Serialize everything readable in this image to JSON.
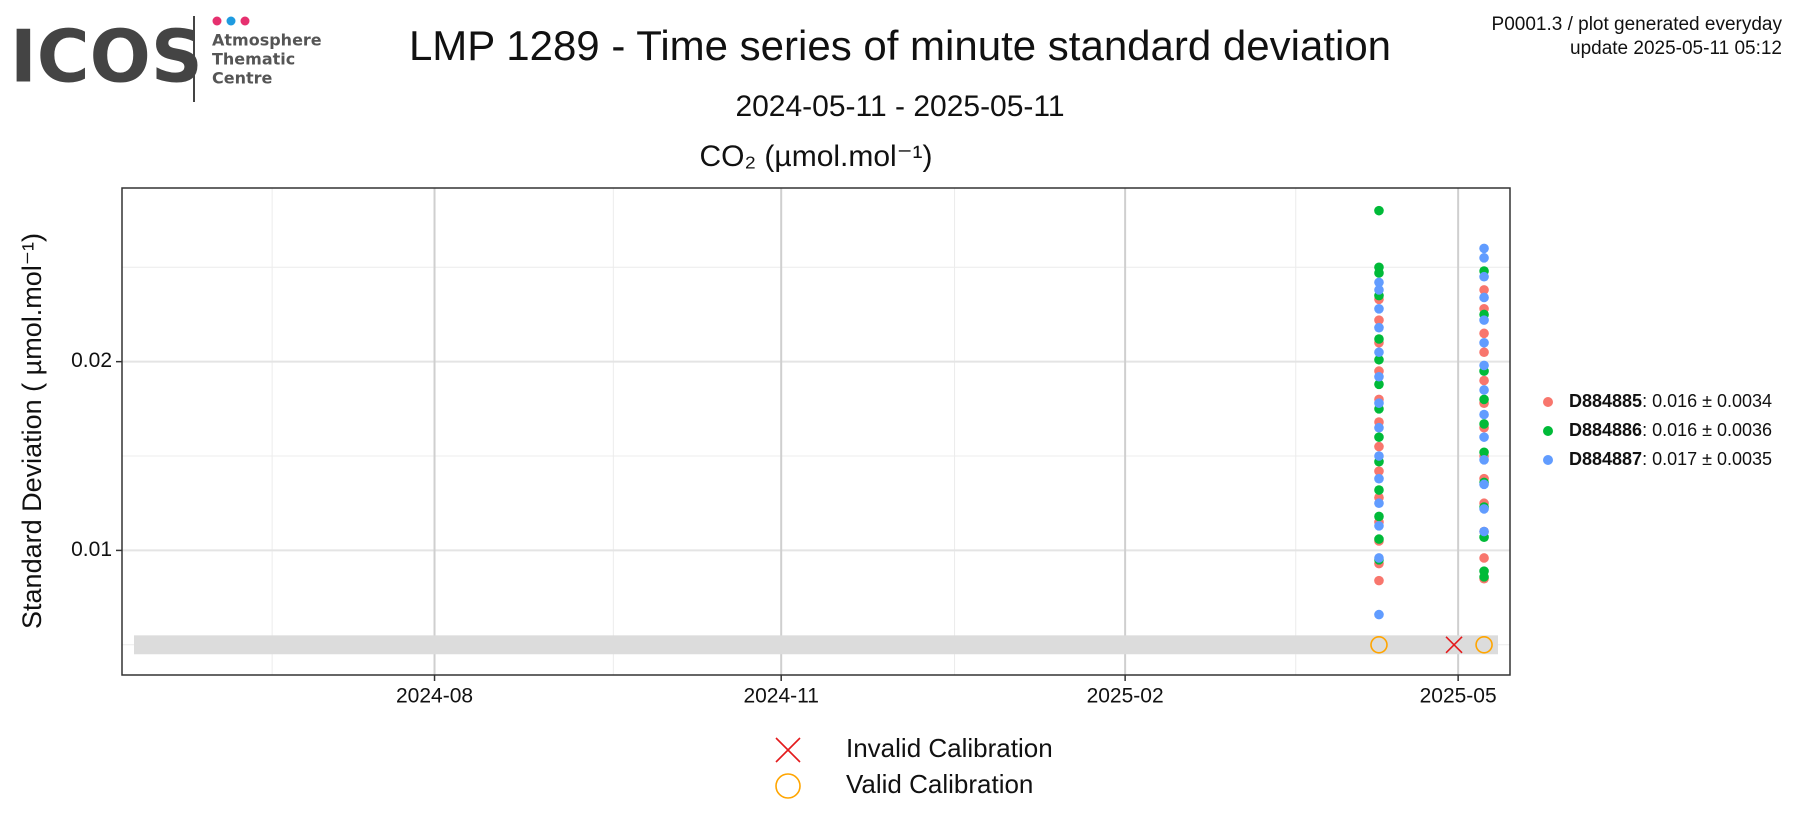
{
  "logo": {
    "name": "ICOS",
    "lines": [
      "Atmosphere",
      "Thematic",
      "Centre"
    ]
  },
  "header": {
    "info": [
      "P0001.3 / plot generated everyday",
      "update  2025-05-11 05:12"
    ]
  },
  "chart_data": {
    "type": "scatter",
    "title": "LMP 1289 - Time series of minute standard deviation",
    "subtitle": "2024-05-11 - 2025-05-11",
    "panel_title": "CO₂ (µmol.mol⁻¹)",
    "y_label": "Standard Deviation ( µmol.mol⁻¹)",
    "xlim": [
      2024.35,
      2025.367
    ],
    "xticks": [
      {
        "value": 2024.579,
        "label": "2024-08"
      },
      {
        "value": 2024.833,
        "label": "2024-11"
      },
      {
        "value": 2025.085,
        "label": "2025-02"
      },
      {
        "value": 2025.329,
        "label": "2025-05"
      }
    ],
    "xminorticks": [
      2024.46,
      2024.71,
      2024.96,
      2025.21
    ],
    "ylim": [
      0.0034,
      0.0292
    ],
    "yticks": [
      0.01,
      0.02
    ],
    "yminorticks": [
      0.005,
      0.015,
      0.025
    ],
    "grid": true,
    "legend": "right",
    "series": [
      {
        "name": "D884885",
        "summary": ": 0.016 ± 0.0034",
        "color": "#F8766D",
        "x": [
          2025.271,
          2025.271,
          2025.271,
          2025.271,
          2025.271,
          2025.271,
          2025.271,
          2025.271,
          2025.271,
          2025.271,
          2025.271,
          2025.271,
          2025.271,
          2025.348,
          2025.348,
          2025.348,
          2025.348,
          2025.348,
          2025.348,
          2025.348,
          2025.348,
          2025.348,
          2025.348,
          2025.348,
          2025.348,
          2025.348
        ],
        "y": [
          0.0084,
          0.0093,
          0.0105,
          0.0115,
          0.0128,
          0.0142,
          0.0155,
          0.0168,
          0.018,
          0.0195,
          0.021,
          0.0222,
          0.0233,
          0.0085,
          0.0096,
          0.011,
          0.0125,
          0.0138,
          0.015,
          0.0165,
          0.0178,
          0.019,
          0.0205,
          0.0215,
          0.0228,
          0.0238
        ]
      },
      {
        "name": "D884886",
        "summary": ": 0.016 ± 0.0036",
        "color": "#00BA38",
        "x": [
          2025.271,
          2025.271,
          2025.271,
          2025.271,
          2025.271,
          2025.271,
          2025.271,
          2025.271,
          2025.271,
          2025.271,
          2025.271,
          2025.271,
          2025.271,
          2025.271,
          2025.348,
          2025.348,
          2025.348,
          2025.348,
          2025.348,
          2025.348,
          2025.348,
          2025.348,
          2025.348,
          2025.348,
          2025.348
        ],
        "y": [
          0.0095,
          0.0106,
          0.0118,
          0.0132,
          0.0147,
          0.016,
          0.0175,
          0.0188,
          0.0201,
          0.0212,
          0.0235,
          0.0247,
          0.025,
          0.028,
          0.0086,
          0.0089,
          0.0107,
          0.0123,
          0.0136,
          0.0152,
          0.0167,
          0.018,
          0.0195,
          0.0225,
          0.0248
        ]
      },
      {
        "name": "D884887",
        "summary": ": 0.017 ± 0.0035",
        "color": "#619CFF",
        "x": [
          2025.271,
          2025.271,
          2025.271,
          2025.271,
          2025.271,
          2025.271,
          2025.271,
          2025.271,
          2025.271,
          2025.271,
          2025.271,
          2025.271,
          2025.271,
          2025.271,
          2025.348,
          2025.348,
          2025.348,
          2025.348,
          2025.348,
          2025.348,
          2025.348,
          2025.348,
          2025.348,
          2025.348,
          2025.348,
          2025.348,
          2025.348,
          2025.348
        ],
        "y": [
          0.0066,
          0.0096,
          0.0113,
          0.0125,
          0.0138,
          0.015,
          0.0165,
          0.0178,
          0.0192,
          0.0205,
          0.0218,
          0.0228,
          0.0238,
          0.0242,
          0.011,
          0.0122,
          0.0135,
          0.0148,
          0.016,
          0.0172,
          0.0185,
          0.0198,
          0.021,
          0.0222,
          0.0234,
          0.0245,
          0.0255,
          0.026
        ]
      }
    ],
    "calibration_band": [
      0.0045,
      0.0055
    ],
    "calibrations": [
      {
        "name": "Invalid Calibration",
        "marker": "cross",
        "color": "#E41A1C",
        "x": [
          2025.326
        ],
        "y": [
          0.005
        ]
      },
      {
        "name": "Valid Calibration",
        "marker": "circle",
        "color": "#FFA500",
        "x": [
          2025.271,
          2025.348
        ],
        "y": [
          0.005,
          0.005
        ]
      }
    ]
  }
}
